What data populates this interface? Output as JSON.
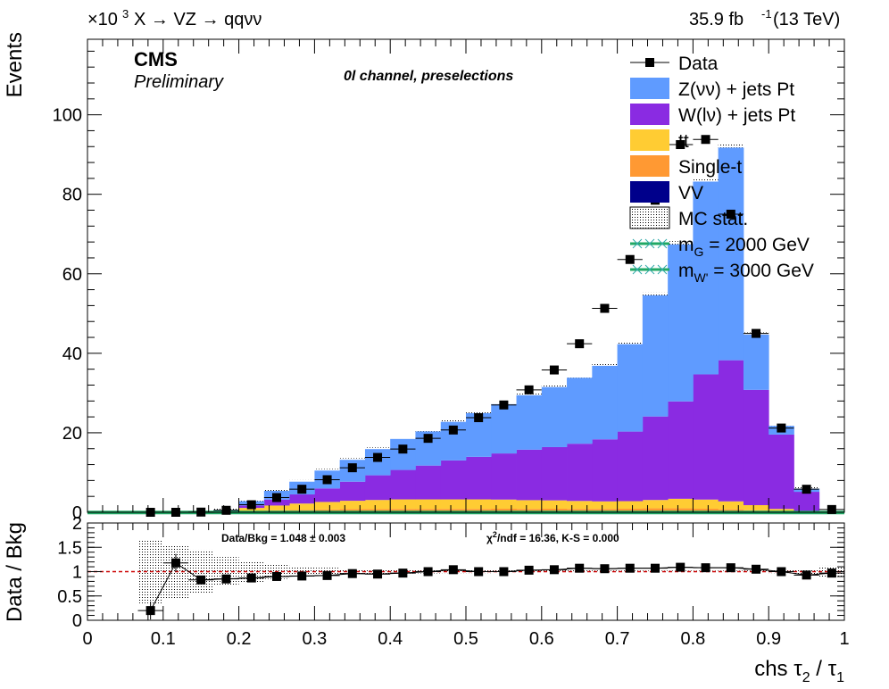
{
  "header": {
    "multiplier": "×10",
    "multiplier_exp": "3",
    "process": "X → VZ → qqνν",
    "lumi": "35.9 fb",
    "lumi_exp": "-1",
    "energy": "(13 TeV)"
  },
  "labels": {
    "cms": "CMS",
    "preliminary": "Preliminary",
    "channel": "0l channel, preselections",
    "ylabel": "Events",
    "ratio_ylabel": "Data / Bkg",
    "xlabel_prefix": "chs τ",
    "xlabel_sub1": "2",
    "xlabel_mid": " / τ",
    "xlabel_sub2": "1",
    "ratio_stat": "Data/Bkg = 1.048 ± 0.003",
    "ratio_chi2_pre": "χ",
    "ratio_chi2_exp": "2",
    "ratio_chi2_post": "/ndf = 16.36,   K-S = 0.000"
  },
  "legend": [
    {
      "key": "data",
      "label": "Data"
    },
    {
      "key": "zjets",
      "label": "Z(νν) + jets Pt"
    },
    {
      "key": "wjets",
      "label": "W(lν) + jets Pt"
    },
    {
      "key": "tt",
      "label": "tt"
    },
    {
      "key": "singlet",
      "label": "Single-t"
    },
    {
      "key": "vv",
      "label": "VV"
    },
    {
      "key": "mcstat",
      "label": "MC stat."
    },
    {
      "key": "sig1",
      "label_pre": "m",
      "label_sub": "G",
      "label_post": " = 2000 GeV"
    },
    {
      "key": "sig2",
      "label_pre": "m",
      "label_sub": "W'",
      "label_post": " = 3000 GeV"
    }
  ],
  "colors": {
    "zjets": "#5f9bff",
    "wjets": "#8a2be2",
    "tt": "#ffcc33",
    "singlet": "#ff9933",
    "vv": "#00008b",
    "signal": "#21a865",
    "data": "#000000",
    "unity_line": "#cc0000"
  },
  "chart_data": [
    {
      "type": "bar",
      "stacked": true,
      "y_multiplier": 1000,
      "xlim": [
        0,
        1
      ],
      "ylim": [
        0,
        119
      ],
      "bin_edges": [
        0.0,
        0.0333,
        0.0667,
        0.1,
        0.1333,
        0.1667,
        0.2,
        0.2333,
        0.2667,
        0.3,
        0.3333,
        0.3667,
        0.4,
        0.4333,
        0.4667,
        0.5,
        0.5333,
        0.5667,
        0.6,
        0.6333,
        0.6667,
        0.7,
        0.7333,
        0.7667,
        0.8,
        0.8333,
        0.8667,
        0.9,
        0.9333,
        0.9667,
        1.0
      ],
      "series": [
        {
          "name": "VV",
          "values": [
            0,
            0,
            0,
            0,
            0,
            0,
            0,
            0,
            0,
            0,
            0,
            0,
            0,
            0,
            0,
            0,
            0.05,
            0.05,
            0.1,
            0.1,
            0.1,
            0.15,
            0.2,
            0.2,
            0.2,
            0.15,
            0.1,
            0.05,
            0,
            0
          ]
        },
        {
          "name": "Single-t",
          "values": [
            0,
            0,
            0,
            0,
            0,
            0,
            0.3,
            0.5,
            0.6,
            0.7,
            0.8,
            0.8,
            0.85,
            0.85,
            0.85,
            0.85,
            0.85,
            0.8,
            0.8,
            0.75,
            0.75,
            0.75,
            0.8,
            0.8,
            0.7,
            0.6,
            0.4,
            0.2,
            0.05,
            0
          ]
        },
        {
          "name": "tt",
          "values": [
            0,
            0,
            0,
            0,
            0,
            0.2,
            0.8,
            1.2,
            1.6,
            1.9,
            2.1,
            2.3,
            2.4,
            2.4,
            2.4,
            2.4,
            2.3,
            2.2,
            2.1,
            2.0,
            1.9,
            1.9,
            2.1,
            2.4,
            2.3,
            2.0,
            1.3,
            0.6,
            0.2,
            0
          ]
        },
        {
          "name": "W(lν) + jets Pt",
          "values": [
            0,
            0,
            0,
            0,
            0,
            0.1,
            0.6,
            1.5,
            2.3,
            3.4,
            4.8,
            6.2,
            7.4,
            8.5,
            9.8,
            10.7,
            11.6,
            12.7,
            13.4,
            14.4,
            15.6,
            17.5,
            21,
            24.5,
            31.5,
            35.5,
            29,
            18.7,
            4.9,
            0
          ]
        },
        {
          "name": "Z(νν) + jets Pt",
          "values": [
            0,
            0,
            0,
            0,
            0,
            0.3,
            1.1,
            2.2,
            3.2,
            4.5,
            5.5,
            6.6,
            7.8,
            8.6,
            9.7,
            11,
            12.4,
            13.7,
            15.1,
            16.6,
            18.5,
            22,
            30.5,
            39.5,
            48.5,
            53.5,
            13.9,
            2.2,
            0.8,
            0
          ]
        }
      ],
      "mc_total_tops": [
        0,
        0,
        0,
        0,
        0,
        0.6,
        2.8,
        5.4,
        7.7,
        10.5,
        13.2,
        15.9,
        18.45,
        20.35,
        22.75,
        24.95,
        27.15,
        29.45,
        31.5,
        33.85,
        36.85,
        42.3,
        54.6,
        67.4,
        83.2,
        91.75,
        44.7,
        21.75,
        5.95,
        0
      ],
      "data": {
        "name": "Data",
        "x": [
          0.0833,
          0.1167,
          0.15,
          0.1833,
          0.2167,
          0.25,
          0.2833,
          0.3167,
          0.35,
          0.3833,
          0.4167,
          0.45,
          0.4833,
          0.5167,
          0.55,
          0.5833,
          0.6167,
          0.65,
          0.6833,
          0.7167,
          0.75,
          0.7833,
          0.8167,
          0.85,
          0.8833,
          0.9167,
          0.95,
          0.9833
        ],
        "y": [
          0,
          0,
          0.05,
          0.5,
          1.9,
          3.7,
          5.8,
          8.2,
          11.2,
          13.8,
          15.9,
          18.6,
          20.7,
          23.8,
          27.0,
          30.8,
          35.8,
          42.4,
          51.3,
          63.6,
          78.5,
          92.5,
          93.8,
          75.0,
          45.0,
          21.2,
          5.8,
          0.7
        ]
      },
      "signals": [
        {
          "name": "m_G = 2000 GeV",
          "value": 0.05
        },
        {
          "name": "m_W' = 3000 GeV",
          "value": 0.05
        }
      ],
      "y_ticks": [
        0,
        20,
        40,
        60,
        80,
        100
      ]
    },
    {
      "type": "scatter",
      "ylim": [
        0,
        2
      ],
      "y_ticks": [
        0,
        0.5,
        1,
        1.5,
        2
      ],
      "x_ticks": [
        0,
        0.1,
        0.2,
        0.3,
        0.4,
        0.5,
        0.6,
        0.7,
        0.8,
        0.9,
        1
      ],
      "x": [
        0.0833,
        0.1167,
        0.15,
        0.1833,
        0.2167,
        0.25,
        0.2833,
        0.3167,
        0.35,
        0.3833,
        0.4167,
        0.45,
        0.4833,
        0.5167,
        0.55,
        0.5833,
        0.6167,
        0.65,
        0.6833,
        0.7167,
        0.75,
        0.7833,
        0.8167,
        0.85,
        0.8833,
        0.9167,
        0.95,
        0.9833
      ],
      "ratio": [
        0.2,
        1.18,
        0.83,
        0.85,
        0.87,
        0.9,
        0.91,
        0.92,
        0.96,
        0.95,
        0.97,
        1.0,
        1.04,
        1.0,
        1.0,
        1.03,
        1.04,
        1.07,
        1.06,
        1.07,
        1.07,
        1.09,
        1.08,
        1.08,
        1.05,
        1.0,
        0.93,
        0.97
      ],
      "stat_band_halfwidth": [
        0.65,
        0.55,
        0.45,
        0.3,
        0.22,
        0.15,
        0.11,
        0.08,
        0.06,
        0.05,
        0.04,
        0.035,
        0.03,
        0.03,
        0.028,
        0.027,
        0.025,
        0.025,
        0.024,
        0.022,
        0.02,
        0.02,
        0.02,
        0.02,
        0.025,
        0.03,
        0.05,
        0.12
      ]
    }
  ]
}
